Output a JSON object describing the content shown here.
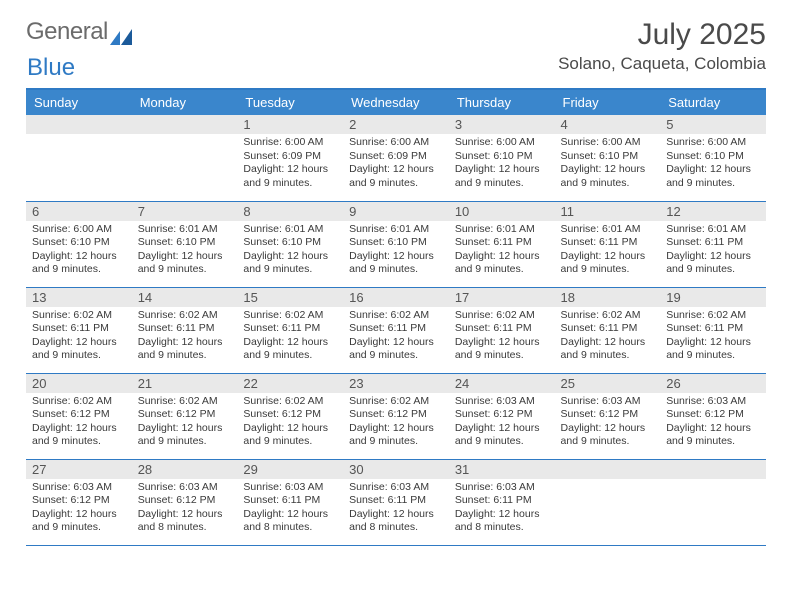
{
  "logo": {
    "textGray": "General",
    "textBlue": "Blue"
  },
  "header": {
    "monthTitle": "July 2025",
    "location": "Solano, Caqueta, Colombia"
  },
  "colors": {
    "headerBar": "#3a86cc",
    "borderBlue": "#2f7ac4",
    "dayNumBg": "#e9e9e9",
    "textDark": "#3a3a3a",
    "titleGray": "#4a4a4a",
    "logoGray": "#6b6b6b"
  },
  "dayHeaders": [
    "Sunday",
    "Monday",
    "Tuesday",
    "Wednesday",
    "Thursday",
    "Friday",
    "Saturday"
  ],
  "weeks": [
    [
      null,
      null,
      {
        "n": "1",
        "sr": "6:00 AM",
        "ss": "6:09 PM",
        "dl": "12 hours and 9 minutes."
      },
      {
        "n": "2",
        "sr": "6:00 AM",
        "ss": "6:09 PM",
        "dl": "12 hours and 9 minutes."
      },
      {
        "n": "3",
        "sr": "6:00 AM",
        "ss": "6:10 PM",
        "dl": "12 hours and 9 minutes."
      },
      {
        "n": "4",
        "sr": "6:00 AM",
        "ss": "6:10 PM",
        "dl": "12 hours and 9 minutes."
      },
      {
        "n": "5",
        "sr": "6:00 AM",
        "ss": "6:10 PM",
        "dl": "12 hours and 9 minutes."
      }
    ],
    [
      {
        "n": "6",
        "sr": "6:00 AM",
        "ss": "6:10 PM",
        "dl": "12 hours and 9 minutes."
      },
      {
        "n": "7",
        "sr": "6:01 AM",
        "ss": "6:10 PM",
        "dl": "12 hours and 9 minutes."
      },
      {
        "n": "8",
        "sr": "6:01 AM",
        "ss": "6:10 PM",
        "dl": "12 hours and 9 minutes."
      },
      {
        "n": "9",
        "sr": "6:01 AM",
        "ss": "6:10 PM",
        "dl": "12 hours and 9 minutes."
      },
      {
        "n": "10",
        "sr": "6:01 AM",
        "ss": "6:11 PM",
        "dl": "12 hours and 9 minutes."
      },
      {
        "n": "11",
        "sr": "6:01 AM",
        "ss": "6:11 PM",
        "dl": "12 hours and 9 minutes."
      },
      {
        "n": "12",
        "sr": "6:01 AM",
        "ss": "6:11 PM",
        "dl": "12 hours and 9 minutes."
      }
    ],
    [
      {
        "n": "13",
        "sr": "6:02 AM",
        "ss": "6:11 PM",
        "dl": "12 hours and 9 minutes."
      },
      {
        "n": "14",
        "sr": "6:02 AM",
        "ss": "6:11 PM",
        "dl": "12 hours and 9 minutes."
      },
      {
        "n": "15",
        "sr": "6:02 AM",
        "ss": "6:11 PM",
        "dl": "12 hours and 9 minutes."
      },
      {
        "n": "16",
        "sr": "6:02 AM",
        "ss": "6:11 PM",
        "dl": "12 hours and 9 minutes."
      },
      {
        "n": "17",
        "sr": "6:02 AM",
        "ss": "6:11 PM",
        "dl": "12 hours and 9 minutes."
      },
      {
        "n": "18",
        "sr": "6:02 AM",
        "ss": "6:11 PM",
        "dl": "12 hours and 9 minutes."
      },
      {
        "n": "19",
        "sr": "6:02 AM",
        "ss": "6:11 PM",
        "dl": "12 hours and 9 minutes."
      }
    ],
    [
      {
        "n": "20",
        "sr": "6:02 AM",
        "ss": "6:12 PM",
        "dl": "12 hours and 9 minutes."
      },
      {
        "n": "21",
        "sr": "6:02 AM",
        "ss": "6:12 PM",
        "dl": "12 hours and 9 minutes."
      },
      {
        "n": "22",
        "sr": "6:02 AM",
        "ss": "6:12 PM",
        "dl": "12 hours and 9 minutes."
      },
      {
        "n": "23",
        "sr": "6:02 AM",
        "ss": "6:12 PM",
        "dl": "12 hours and 9 minutes."
      },
      {
        "n": "24",
        "sr": "6:03 AM",
        "ss": "6:12 PM",
        "dl": "12 hours and 9 minutes."
      },
      {
        "n": "25",
        "sr": "6:03 AM",
        "ss": "6:12 PM",
        "dl": "12 hours and 9 minutes."
      },
      {
        "n": "26",
        "sr": "6:03 AM",
        "ss": "6:12 PM",
        "dl": "12 hours and 9 minutes."
      }
    ],
    [
      {
        "n": "27",
        "sr": "6:03 AM",
        "ss": "6:12 PM",
        "dl": "12 hours and 9 minutes."
      },
      {
        "n": "28",
        "sr": "6:03 AM",
        "ss": "6:12 PM",
        "dl": "12 hours and 8 minutes."
      },
      {
        "n": "29",
        "sr": "6:03 AM",
        "ss": "6:11 PM",
        "dl": "12 hours and 8 minutes."
      },
      {
        "n": "30",
        "sr": "6:03 AM",
        "ss": "6:11 PM",
        "dl": "12 hours and 8 minutes."
      },
      {
        "n": "31",
        "sr": "6:03 AM",
        "ss": "6:11 PM",
        "dl": "12 hours and 8 minutes."
      },
      null,
      null
    ]
  ],
  "labels": {
    "sunrise": "Sunrise:",
    "sunset": "Sunset:",
    "daylight": "Daylight:"
  }
}
